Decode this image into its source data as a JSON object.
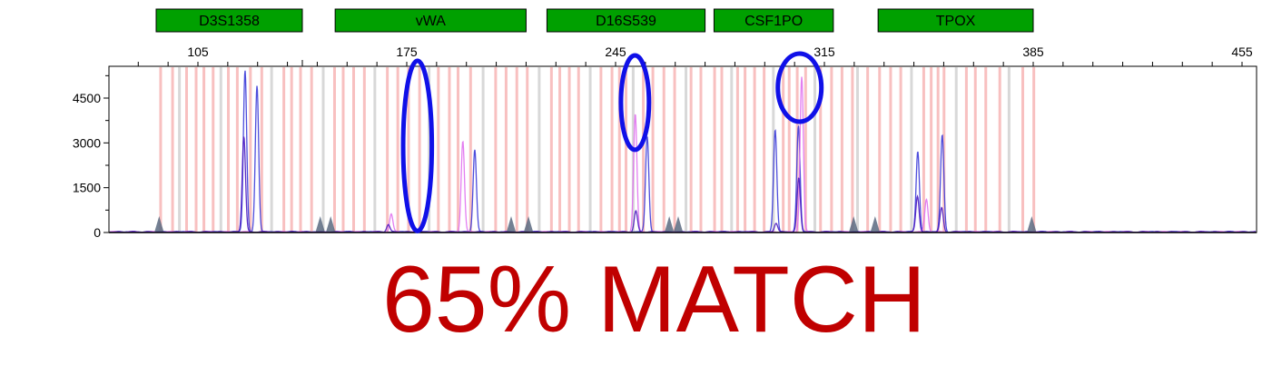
{
  "chart_data": {
    "type": "line",
    "title": "",
    "xlabel": "",
    "ylabel": "",
    "xlim": [
      75,
      460
    ],
    "ylim": [
      0,
      5800
    ],
    "x_ticks": [
      105,
      175,
      245,
      315,
      385,
      455
    ],
    "x_tick_labels": [
      "105",
      "175",
      "245",
      "315",
      "385",
      "455"
    ],
    "y_ticks": [
      0,
      1500,
      3000,
      4500
    ],
    "y_tick_labels": [
      "0",
      "1500",
      "3000",
      "4500"
    ],
    "markers": [
      {
        "name": "D3S1358",
        "start": 91,
        "end": 140
      },
      {
        "name": "vWA",
        "start": 151,
        "end": 215
      },
      {
        "name": "D16S539",
        "start": 222,
        "end": 275
      },
      {
        "name": "CSF1PO",
        "start": 278,
        "end": 318
      },
      {
        "name": "TPOX",
        "start": 333,
        "end": 385
      }
    ],
    "bin_lines": [
      92.5,
      96.5,
      98.8,
      101.2,
      104.4,
      107,
      110.1,
      112.7,
      115.2,
      118.2,
      122.6,
      126.4,
      129.7,
      133.8,
      136.4,
      139.4,
      143.1,
      147,
      150.8,
      153.7,
      157.2,
      160.8,
      164.3,
      168.5,
      172,
      175.6,
      179.3,
      182.5,
      185.6,
      189.3,
      192.2,
      196.4,
      200.6,
      204.8,
      208.3,
      211.9,
      215.4,
      219.4,
      223.5,
      226.3,
      229.5,
      232.6,
      236.5,
      240.1,
      243.8,
      246.3,
      248.5,
      250.9,
      254.3,
      257.5,
      261.2,
      264.8,
      268.6,
      270.3,
      273.6,
      278.2,
      280.6,
      283.9,
      285.9,
      288.4,
      291.6,
      294.8,
      297.9,
      301.2,
      303.2,
      305.9,
      308.7,
      311.8,
      313.7,
      317.4,
      320.9,
      324.4,
      326.1,
      329.5,
      333.5,
      337.2,
      340.6,
      344.2,
      348.3,
      350.8,
      353.1,
      355.1,
      359.2,
      362.6,
      365.6,
      369.1,
      373.8,
      376.9,
      381.5,
      385.2
    ],
    "series": [
      {
        "color": "#3a3ad8",
        "peaks": [
          [
            120.8,
            5400
          ],
          [
            124.8,
            4900
          ],
          [
            197.8,
            2750
          ],
          [
            255.6,
            3200
          ],
          [
            298.5,
            3400
          ],
          [
            306.3,
            3550
          ],
          [
            346.3,
            2700
          ],
          [
            354.5,
            3250
          ]
        ]
      },
      {
        "color": "#e070f0",
        "peaks": [
          [
            169.8,
            600
          ],
          [
            193.8,
            3050
          ],
          [
            251.6,
            3950
          ],
          [
            307.4,
            5200
          ],
          [
            349.2,
            1100
          ]
        ]
      },
      {
        "color": "#4a18c0",
        "peaks": [
          [
            120.4,
            3200
          ],
          [
            168.8,
            250
          ],
          [
            251.8,
            700
          ],
          [
            298.8,
            300
          ],
          [
            306.4,
            1800
          ],
          [
            346.2,
            1200
          ],
          [
            354.3,
            800
          ]
        ]
      }
    ],
    "ladder_triangles": [
      92,
      146,
      149.5,
      210,
      215.8,
      263,
      266,
      324.8,
      332,
      384.5
    ]
  },
  "annotations": {
    "ellipse_color": "#1010e8",
    "ellipses": [
      {
        "cx": 178.6,
        "cy": 2900,
        "rx": 4.8,
        "ry": 2850
      },
      {
        "cx": 251.5,
        "cy": 4350,
        "rx": 4.7,
        "ry": 1580
      },
      {
        "cx": 306.7,
        "cy": 4850,
        "rx": 7.3,
        "ry": 1140
      }
    ]
  },
  "match_text": "65% MATCH",
  "colors": {
    "match": "#c00000",
    "marker_fill": "#00a000",
    "bin_pink": "#f8c0c0",
    "bin_gray": "#d8d8d8",
    "triangle": "#5a6a80"
  }
}
